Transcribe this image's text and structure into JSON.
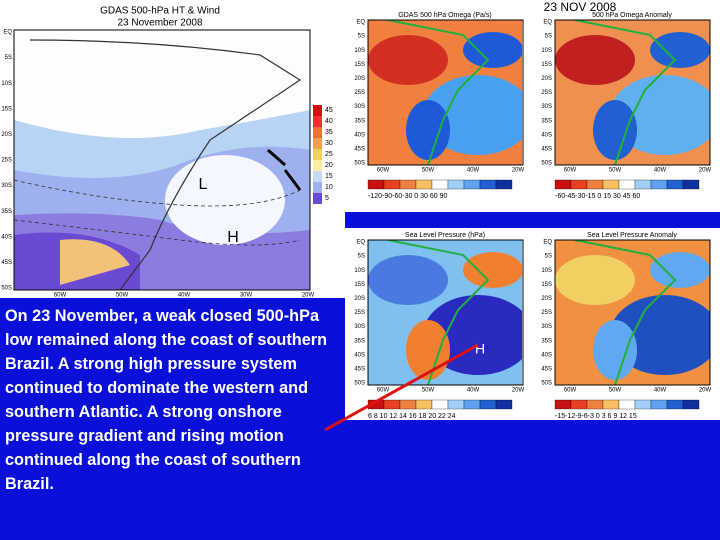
{
  "left_map": {
    "title": "GDAS 500-hPa HT & Wind",
    "date": "23 November 2008",
    "low_label": "L",
    "high_label": "H",
    "colorbar": [
      "45",
      "40",
      "35",
      "30",
      "25",
      "20",
      "15",
      "10",
      "5"
    ],
    "lat_labels": [
      "EQ",
      "5S",
      "10S",
      "15S",
      "20S",
      "25S",
      "30S",
      "35S",
      "40S",
      "45S",
      "50S"
    ],
    "lon_labels": [
      "60W",
      "50W",
      "40W",
      "30W",
      "20W"
    ]
  },
  "right_panels": {
    "date": "23 NOV 2008",
    "lat_labels": [
      "EQ",
      "5S",
      "10S",
      "15S",
      "20S",
      "25S",
      "30S",
      "35S",
      "40S",
      "45S",
      "50S"
    ],
    "lon_labels": [
      "60W",
      "50W",
      "40W",
      "20W"
    ],
    "panels": [
      {
        "title": "GDAS 500 hPa Omega (Pa/s)",
        "colorbar": "-120-90-60-30 0 30 60 90"
      },
      {
        "title": "500 hPa Omega Anomaly",
        "colorbar": "-60-45-30-15 0 15 30 45 60"
      },
      {
        "title": "Sea Level Pressure (hPa)",
        "colorbar": "6 8 10 12 14 16 18 20 22 24",
        "label": "H"
      },
      {
        "title": "Sea Level Pressure Anomaly",
        "colorbar": "-15-12-9-6-3 0 3 6 9 12 15"
      }
    ]
  },
  "caption": "On 23 November, a weak closed 500-hPa low remained along the coast of southern Brazil. A strong high pressure system continued to dominate the western and southern Atlantic. A strong onshore pressure gradient and rising motion continued along the coast of southern Brazil."
}
